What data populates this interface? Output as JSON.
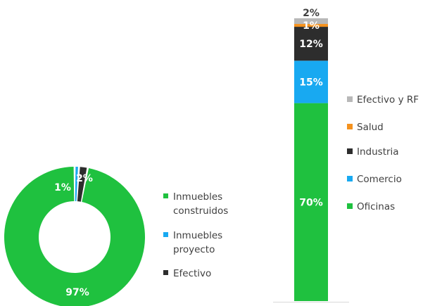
{
  "chart_data": [
    {
      "type": "pie",
      "variant": "donut",
      "slices": [
        {
          "label": "Inmuebles construidos",
          "legend_lines": [
            "Inmuebles",
            "construidos"
          ],
          "value": 97,
          "value_label": "97%",
          "color": "#1fc13f"
        },
        {
          "label": "Inmuebles proyecto",
          "legend_lines": [
            "Inmuebles",
            "proyecto"
          ],
          "value": 1,
          "value_label": "1%",
          "color": "#18a9f1"
        },
        {
          "label": "Efectivo",
          "legend_lines": [
            "Efectivo"
          ],
          "value": 2,
          "value_label": "2%",
          "color": "#2d2d2d"
        }
      ],
      "legend_position": "right"
    },
    {
      "type": "bar",
      "variant": "stacked-100",
      "categories": [
        ""
      ],
      "series": [
        {
          "name": "Oficinas",
          "value": 70,
          "value_label": "70%",
          "color": "#1fc13f"
        },
        {
          "name": "Comercio",
          "value": 15,
          "value_label": "15%",
          "color": "#18a9f1"
        },
        {
          "name": "Industria",
          "value": 12,
          "value_label": "12%",
          "color": "#2d2d2d"
        },
        {
          "name": "Salud",
          "value": 1,
          "value_label": "1%",
          "color": "#f5921e"
        },
        {
          "name": "Efectivo y RF",
          "value": 2,
          "value_label": "2%",
          "color": "#b8b8b8"
        }
      ],
      "legend_position": "right",
      "legend_order": [
        "Efectivo y RF",
        "Salud",
        "Industria",
        "Comercio",
        "Oficinas"
      ]
    }
  ]
}
